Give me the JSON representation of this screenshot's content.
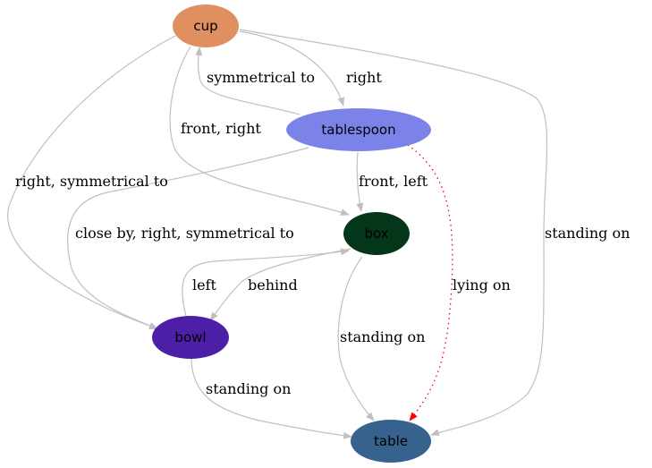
{
  "graph": {
    "nodes": {
      "cup": {
        "label": "cup",
        "color": "#e09060",
        "text_color": "#000000"
      },
      "tablespoon": {
        "label": "tablespoon",
        "color": "#7b83e8",
        "text_color": "#000000"
      },
      "box": {
        "label": "box",
        "color": "#04361a",
        "text_color": "#000000"
      },
      "bowl": {
        "label": "bowl",
        "color": "#4d1ea6",
        "text_color": "#000000"
      },
      "table": {
        "label": "table",
        "color": "#37628e",
        "text_color": "#000000"
      }
    },
    "edges": {
      "cup_tablespoon": {
        "from": "cup",
        "to": "tablespoon",
        "label": "right"
      },
      "tablespoon_cup": {
        "from": "tablespoon",
        "to": "cup",
        "label": "symmetrical to"
      },
      "cup_box": {
        "from": "cup",
        "to": "box",
        "label": "front, right"
      },
      "cup_bowl": {
        "from": "cup",
        "to": "bowl",
        "label": "right, symmetrical to"
      },
      "cup_table": {
        "from": "cup",
        "to": "table",
        "label": "standing on"
      },
      "tablespoon_box": {
        "from": "tablespoon",
        "to": "box",
        "label": "front, left"
      },
      "tablespoon_bowl": {
        "from": "tablespoon",
        "to": "bowl",
        "label": "close by, right, symmetrical to"
      },
      "tablespoon_table": {
        "from": "tablespoon",
        "to": "table",
        "label": "lying on",
        "color": "#ff0000"
      },
      "bowl_box": {
        "from": "bowl",
        "to": "box",
        "label": "left"
      },
      "box_bowl": {
        "from": "box",
        "to": "bowl",
        "label": "behind"
      },
      "box_table": {
        "from": "box",
        "to": "table",
        "label": "standing on"
      },
      "bowl_table": {
        "from": "bowl",
        "to": "table",
        "label": "standing on"
      }
    },
    "edge_color": "#c0c0c0"
  }
}
